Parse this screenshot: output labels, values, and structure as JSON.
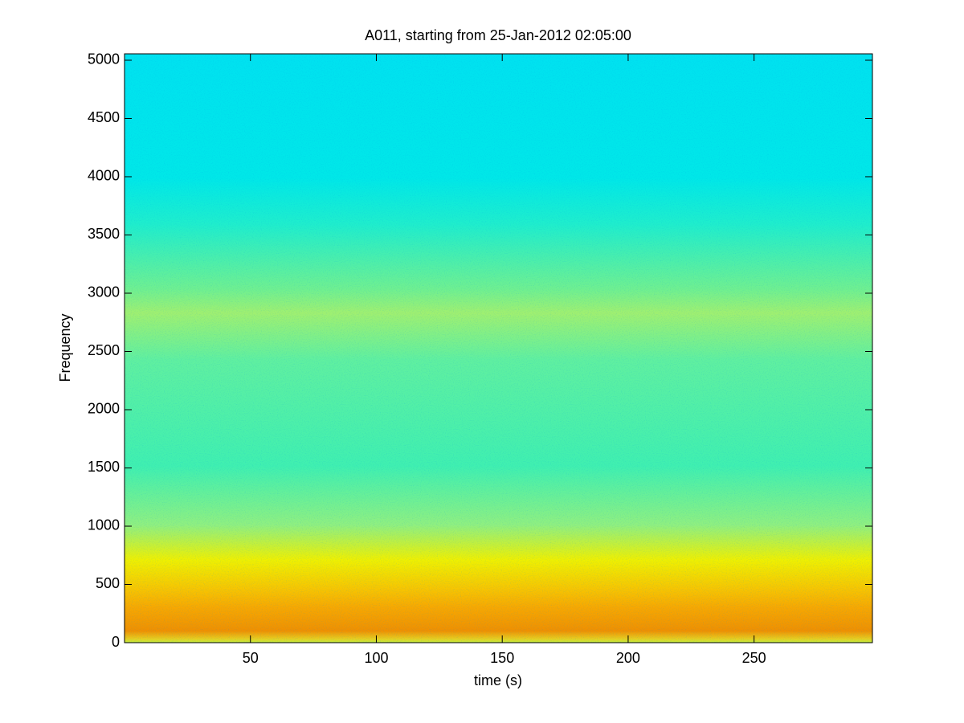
{
  "chart_data": {
    "type": "spectrogram",
    "title": "A011, starting from 25-Jan-2012 02:05:00",
    "x_label": "time (s)",
    "y_label": "Frequency",
    "xlim": [
      0,
      297
    ],
    "ylim": [
      0,
      5055
    ],
    "xticks": [
      50,
      100,
      150,
      200,
      250
    ],
    "yticks": [
      0,
      500,
      1000,
      1500,
      2000,
      2500,
      3000,
      3500,
      4000,
      4500,
      5000
    ]
  }
}
